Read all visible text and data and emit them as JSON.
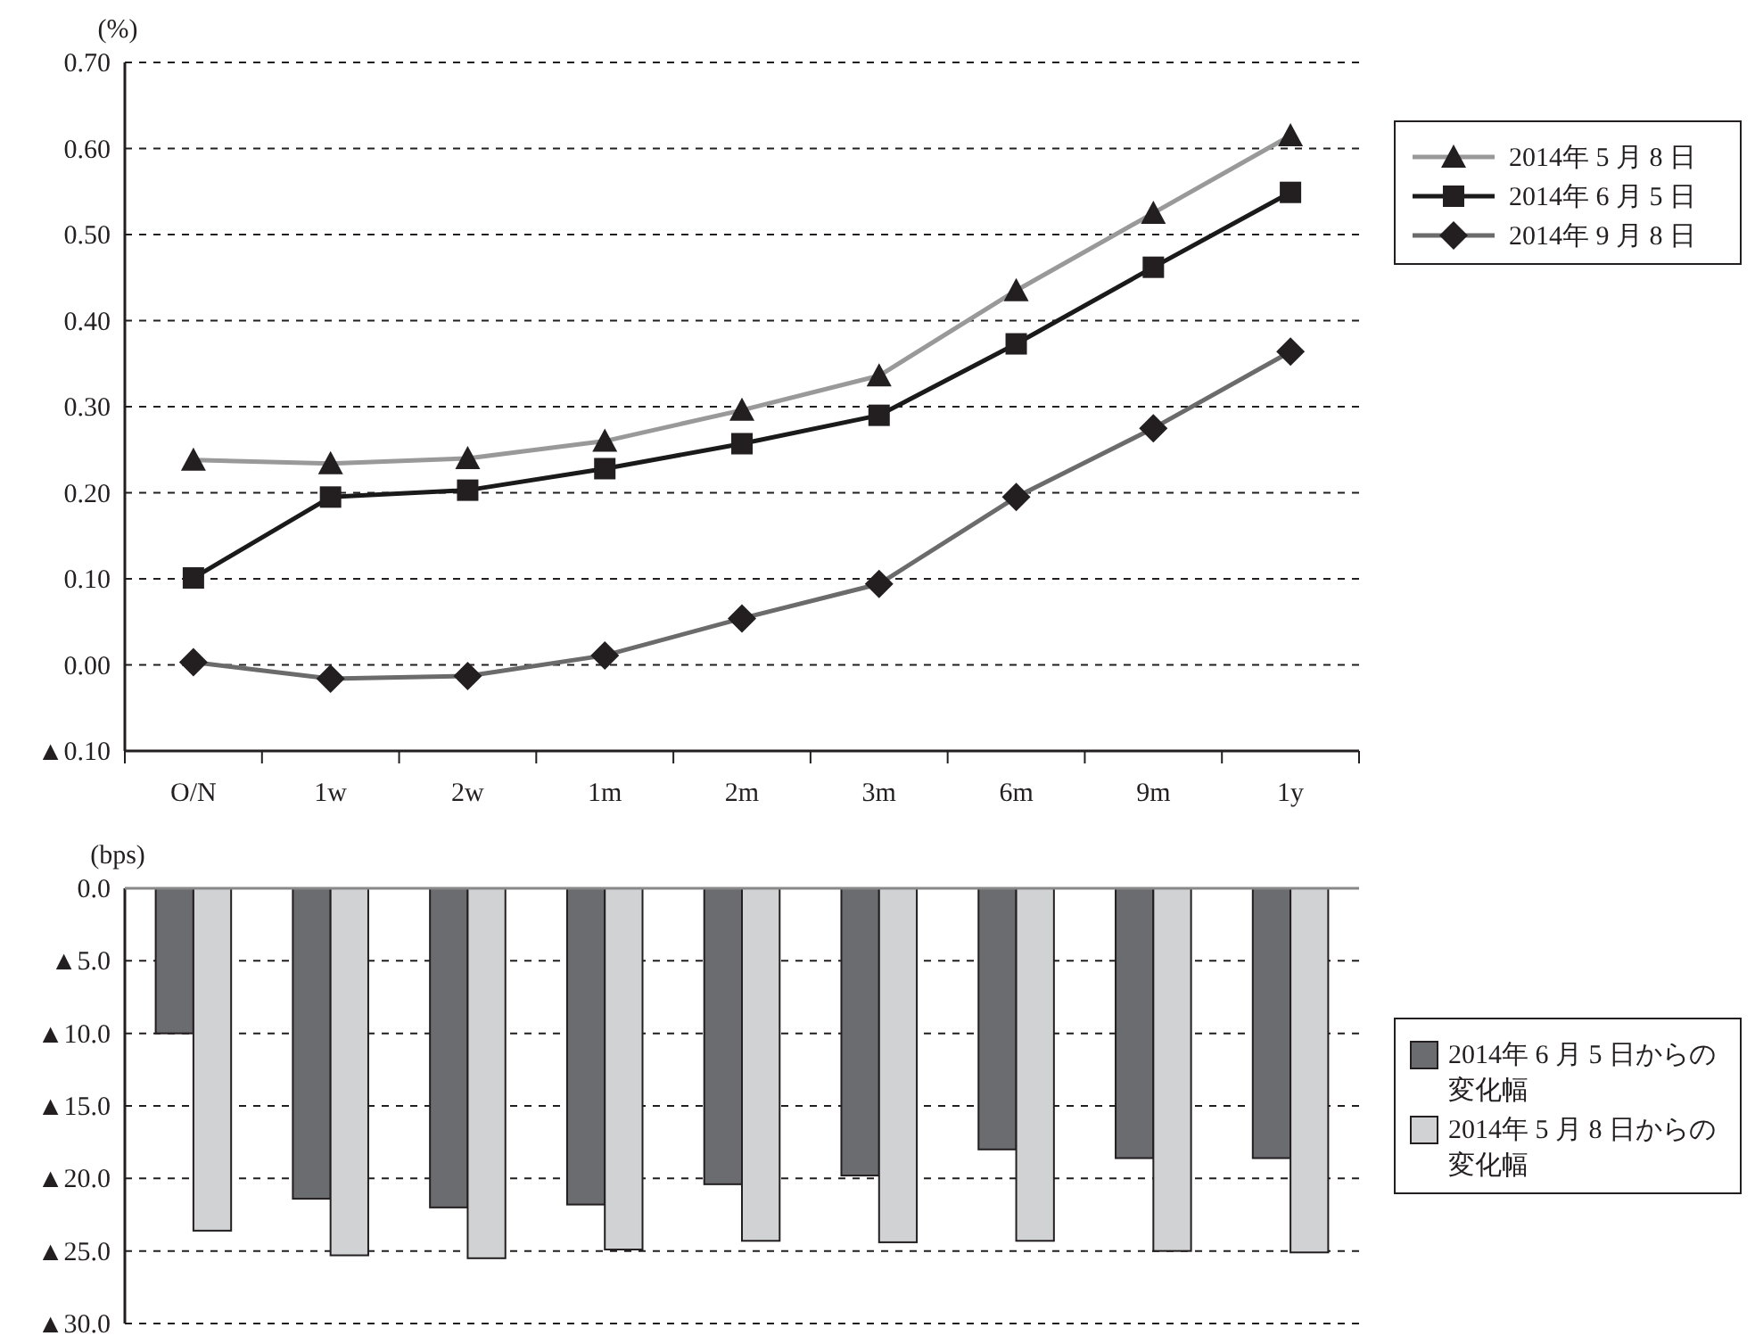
{
  "chart_data": [
    {
      "type": "line",
      "ylabel": "(%)",
      "categories": [
        "O/N",
        "1w",
        "2w",
        "1m",
        "2m",
        "3m",
        "6m",
        "9m",
        "1y"
      ],
      "series": [
        {
          "name": "2014年 5 月 8 日",
          "color": "#999999",
          "marker": "triangle",
          "values": [
            0.238,
            0.234,
            0.24,
            0.26,
            0.296,
            0.336,
            0.435,
            0.525,
            0.615
          ]
        },
        {
          "name": "2014年 6 月 5 日",
          "color": "#1a1a1a",
          "marker": "square",
          "values": [
            0.101,
            0.195,
            0.203,
            0.228,
            0.257,
            0.29,
            0.373,
            0.462,
            0.549
          ]
        },
        {
          "name": "2014年 9 月 8 日",
          "color": "#6b6b6b",
          "marker": "diamond",
          "values": [
            0.003,
            -0.016,
            -0.013,
            0.011,
            0.054,
            0.094,
            0.195,
            0.275,
            0.364
          ]
        }
      ],
      "ylim": [
        -0.1,
        0.7
      ],
      "yticks": [
        {
          "value": -0.1,
          "label": "▲0.10"
        },
        {
          "value": 0,
          "label": "0.00"
        },
        {
          "value": 0.1,
          "label": "0.10"
        },
        {
          "value": 0.2,
          "label": "0.20"
        },
        {
          "value": 0.3,
          "label": "0.30"
        },
        {
          "value": 0.4,
          "label": "0.40"
        },
        {
          "value": 0.5,
          "label": "0.50"
        },
        {
          "value": 0.6,
          "label": "0.60"
        },
        {
          "value": 0.7,
          "label": "0.70"
        }
      ],
      "grid": "y",
      "legend": "top right"
    },
    {
      "type": "bar",
      "ylabel": "(bps)",
      "categories": [
        null,
        null,
        null,
        null,
        null,
        null,
        null,
        null,
        null
      ],
      "tick_labels": "y",
      "series": [
        {
          "name": "2014年 6 月 5 日からの変化幅",
          "color": "#6b6c70",
          "values": [
            -10.0,
            -21.4,
            -22.0,
            -21.8,
            -20.4,
            -19.8,
            -18.0,
            -18.6,
            -18.6
          ]
        },
        {
          "name": "2014年 5 月 8 日からの変化幅",
          "color": "#d1d2d4",
          "values": [
            -23.6,
            -25.3,
            -25.5,
            -24.9,
            -24.3,
            -24.4,
            -24.3,
            -25.0,
            -25.1
          ]
        }
      ],
      "ylim": [
        -30,
        0
      ],
      "yticks": [
        {
          "value": -30,
          "label": "▲30.0"
        },
        {
          "value": -25,
          "label": "▲25.0"
        },
        {
          "value": -20,
          "label": "▲20.0"
        },
        {
          "value": -15,
          "label": "▲15.0"
        },
        {
          "value": -10,
          "label": "▲10.0"
        },
        {
          "value": -5,
          "label": "▲5.0"
        },
        {
          "value": 0,
          "label": "0.0"
        }
      ],
      "grid": "y",
      "legend": "right"
    }
  ]
}
